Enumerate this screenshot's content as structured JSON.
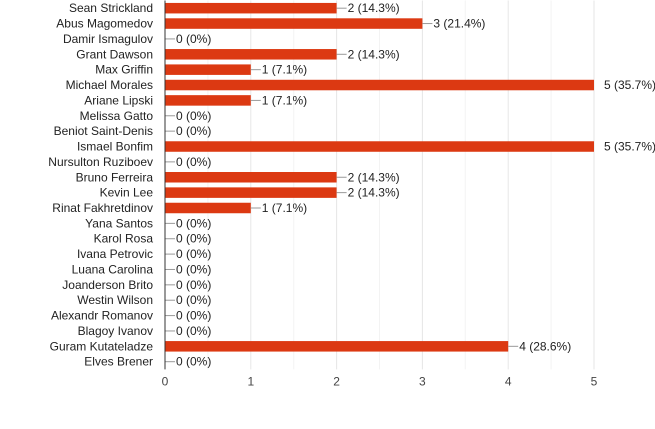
{
  "chart_data": {
    "type": "bar",
    "orientation": "horizontal",
    "categories": [
      "Sean Strickland",
      "Abus Magomedov",
      "Damir Ismagulov",
      "Grant Dawson",
      "Max Griffin",
      "Michael Morales",
      "Ariane Lipski",
      "Melissa Gatto",
      "Beniot Saint-Denis",
      "Ismael Bonfim",
      "Nursulton Ruziboev",
      "Bruno Ferreira",
      "Kevin Lee",
      "Rinat Fakhretdinov",
      "Yana Santos",
      "Karol Rosa",
      "Ivana Petrovic",
      "Luana Carolina",
      "Joanderson Brito",
      "Westin Wilson",
      "Alexandr Romanov",
      "Blagoy Ivanov",
      "Guram Kutateladze",
      "Elves Brener"
    ],
    "values": [
      2,
      3,
      0,
      2,
      1,
      5,
      1,
      0,
      0,
      5,
      0,
      2,
      2,
      1,
      0,
      0,
      0,
      0,
      0,
      0,
      0,
      0,
      4,
      0
    ],
    "data_labels": [
      "2 (14.3%)",
      "3 (21.4%)",
      "0 (0%)",
      "2 (14.3%)",
      "1 (7.1%)",
      "5 (35.7%)",
      "1 (7.1%)",
      "0 (0%)",
      "0 (0%)",
      "5 (35.7%)",
      "0 (0%)",
      "2 (14.3%)",
      "2 (14.3%)",
      "1 (7.1%)",
      "0 (0%)",
      "0 (0%)",
      "0 (0%)",
      "0 (0%)",
      "0 (0%)",
      "0 (0%)",
      "0 (0%)",
      "0 (0%)",
      "4 (28.6%)",
      "0 (0%)"
    ],
    "xlim": [
      0,
      5
    ],
    "x_ticks": [
      "0",
      "1",
      "2",
      "3",
      "4",
      "5"
    ],
    "grid": true,
    "bar_color": "#dc3912",
    "grid_color": "#e6e6e6",
    "axis_color": "#333333",
    "title": "",
    "xlabel": "",
    "ylabel": ""
  }
}
